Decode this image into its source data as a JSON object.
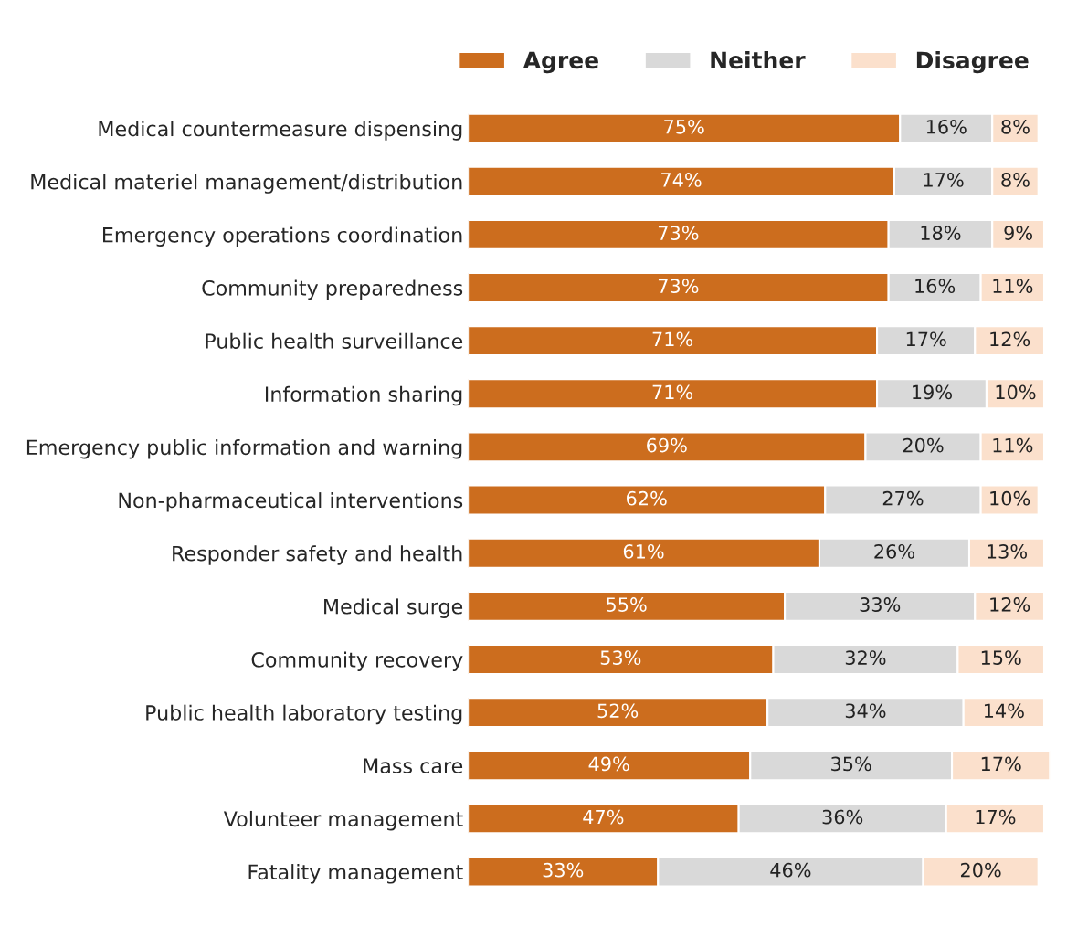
{
  "chart_data": {
    "type": "bar",
    "orientation": "horizontal",
    "stacked": true,
    "legend": "top right",
    "grid": false,
    "tick_labels": "y",
    "categories": [
      "Medical countermeasure dispensing",
      "Medical materiel management/distribution",
      "Emergency operations coordination",
      "Community preparedness",
      "Public health surveillance",
      "Information sharing",
      "Emergency public information and warning",
      "Non-pharmaceutical interventions",
      "Responder safety and health",
      "Medical surge",
      "Community recovery",
      "Public health laboratory testing",
      "Mass care",
      "Volunteer management",
      "Fatality management"
    ],
    "series": [
      {
        "name": "Agree",
        "color": "#cc6d1e",
        "values": [
          75,
          74,
          73,
          73,
          71,
          71,
          69,
          62,
          61,
          55,
          53,
          52,
          49,
          47,
          33
        ],
        "value_labels": [
          "75%",
          "74%",
          "73%",
          "73%",
          "71%",
          "71%",
          "69%",
          "62%",
          "61%",
          "55%",
          "53%",
          "52%",
          "49%",
          "47%",
          "33%"
        ]
      },
      {
        "name": "Neither",
        "color": "#d9d9d9",
        "values": [
          16,
          17,
          18,
          16,
          17,
          19,
          20,
          27,
          26,
          33,
          32,
          34,
          35,
          36,
          46
        ],
        "value_labels": [
          "16%",
          "17%",
          "18%",
          "16%",
          "17%",
          "19%",
          "20%",
          "27%",
          "26%",
          "33%",
          "32%",
          "34%",
          "35%",
          "36%",
          "46%"
        ]
      },
      {
        "name": "Disagree",
        "color": "#fbe0cc",
        "values": [
          8,
          8,
          9,
          11,
          12,
          10,
          11,
          10,
          13,
          12,
          15,
          14,
          17,
          17,
          20
        ],
        "value_labels": [
          "8%",
          "8%",
          "9%",
          "11%",
          "12%",
          "10%",
          "11%",
          "10%",
          "13%",
          "12%",
          "15%",
          "14%",
          "17%",
          "17%",
          "20%"
        ]
      }
    ]
  }
}
